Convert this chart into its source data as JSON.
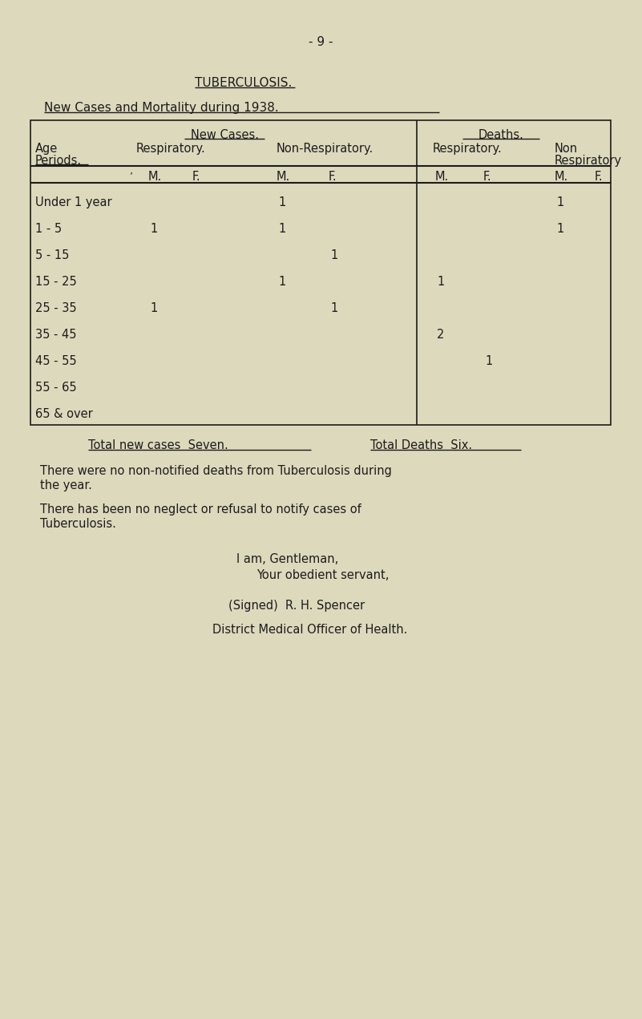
{
  "bg_color": "#ddd9bc",
  "page_number": "- 9 -",
  "title": "TUBERCULOSIS.",
  "subtitle": "New Cases and Mortality during 1938.",
  "data": [
    {
      "age": "Under 1 year",
      "nc_resp_m": "",
      "nc_resp_f": "",
      "nc_nresp_m": "1",
      "nc_nresp_f": "",
      "d_resp_m": "",
      "d_resp_f": "",
      "d_nresp_m": "1",
      "d_nresp_f": ""
    },
    {
      "age": "1 - 5",
      "nc_resp_m": "1",
      "nc_resp_f": "",
      "nc_nresp_m": "1",
      "nc_nresp_f": "",
      "d_resp_m": "",
      "d_resp_f": "",
      "d_nresp_m": "1",
      "d_nresp_f": ""
    },
    {
      "age": "5 - 15",
      "nc_resp_m": "",
      "nc_resp_f": "",
      "nc_nresp_m": "",
      "nc_nresp_f": "1",
      "d_resp_m": "",
      "d_resp_f": "",
      "d_nresp_m": "",
      "d_nresp_f": ""
    },
    {
      "age": "15 - 25",
      "nc_resp_m": "",
      "nc_resp_f": "",
      "nc_nresp_m": "1",
      "nc_nresp_f": "",
      "d_resp_m": "1",
      "d_resp_f": "",
      "d_nresp_m": "",
      "d_nresp_f": ""
    },
    {
      "age": "25 - 35",
      "nc_resp_m": "1",
      "nc_resp_f": "",
      "nc_nresp_m": "",
      "nc_nresp_f": "1",
      "d_resp_m": "",
      "d_resp_f": "",
      "d_nresp_m": "",
      "d_nresp_f": ""
    },
    {
      "age": "35 - 45",
      "nc_resp_m": "",
      "nc_resp_f": "",
      "nc_nresp_m": "",
      "nc_nresp_f": "",
      "d_resp_m": "2",
      "d_resp_f": "",
      "d_nresp_m": "",
      "d_nresp_f": ""
    },
    {
      "age": "45 - 55",
      "nc_resp_m": "",
      "nc_resp_f": "",
      "nc_nresp_m": "",
      "nc_nresp_f": "",
      "d_resp_m": "",
      "d_resp_f": "1",
      "d_nresp_m": "",
      "d_nresp_f": ""
    },
    {
      "age": "55 - 65",
      "nc_resp_m": "",
      "nc_resp_f": "",
      "nc_nresp_m": "",
      "nc_nresp_f": "",
      "d_resp_m": "",
      "d_resp_f": "",
      "d_nresp_m": "",
      "d_nresp_f": ""
    },
    {
      "age": "65 & over",
      "nc_resp_m": "",
      "nc_resp_f": "",
      "nc_nresp_m": "",
      "nc_nresp_f": "",
      "d_resp_m": "",
      "d_resp_f": "",
      "d_nresp_m": "",
      "d_nresp_f": ""
    }
  ],
  "para1_line1": "There were no non-notified deaths from Tuberculosis during",
  "para1_line2": "the year.",
  "para2_line1": "There has been no neglect or refusal to notify cases of",
  "para2_line2": "Tuberculosis.",
  "closing1": "I am, Gentleman,",
  "closing2": "Your obedient servant,",
  "signed": "(Signed)  R. H. Spencer",
  "title_sig": "District Medical Officer of Health.",
  "font_color": "#1c1c1c"
}
